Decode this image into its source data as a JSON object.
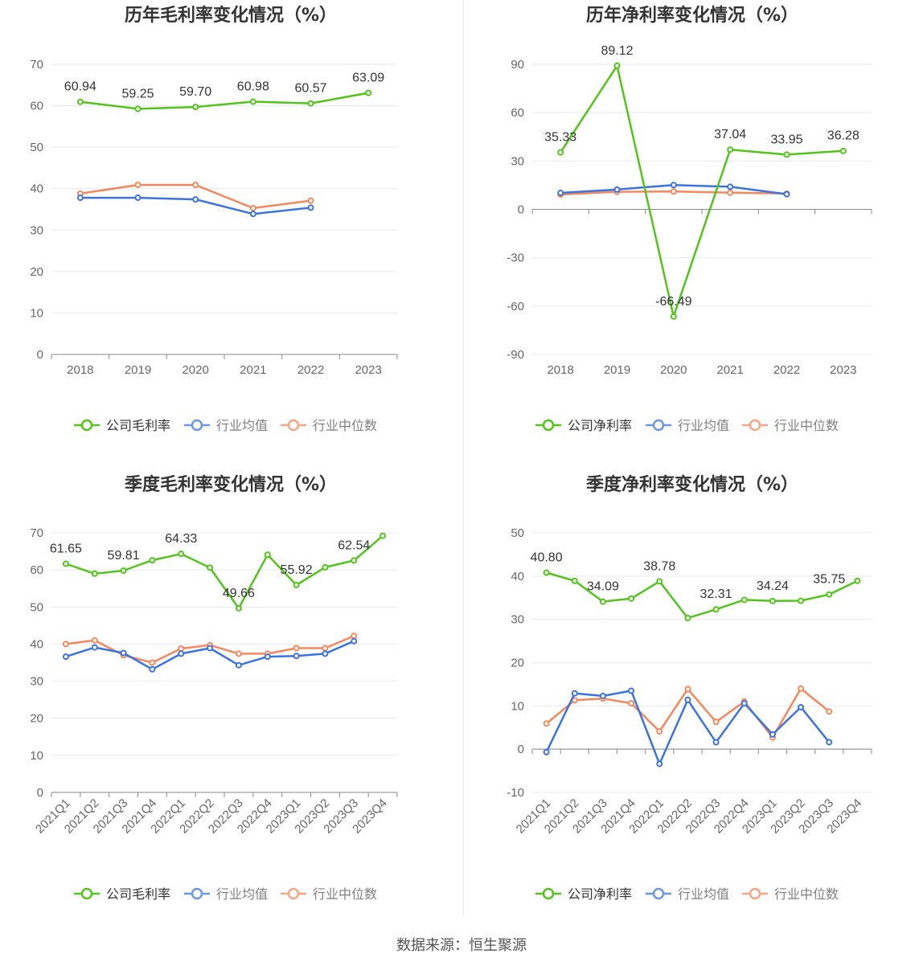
{
  "colors": {
    "company": "#52c41a",
    "avg": "#3b73e0",
    "median": "#f5875c"
  },
  "legend": {
    "avg": "行业均值",
    "median": "行业中位数"
  },
  "source": "数据来源：恒生聚源",
  "chart_data": [
    {
      "type": "line",
      "title": "历年毛利率变化情况（%）",
      "categories": [
        "2018",
        "2019",
        "2020",
        "2021",
        "2022",
        "2023"
      ],
      "ylim": [
        0,
        70
      ],
      "yticks": [
        0,
        10,
        20,
        30,
        40,
        50,
        60,
        70
      ],
      "grid": true,
      "legend_position": "bottom",
      "series": [
        {
          "name": "公司毛利率",
          "key": "company",
          "values": [
            60.94,
            59.25,
            59.7,
            60.98,
            60.57,
            63.09
          ],
          "labels": [
            "60.94",
            "59.25",
            "59.70",
            "60.98",
            "60.57",
            "63.09"
          ]
        },
        {
          "name": "行业均值",
          "key": "avg",
          "values": [
            37.8,
            37.8,
            37.4,
            33.9,
            35.4,
            null
          ]
        },
        {
          "name": "行业中位数",
          "key": "median",
          "values": [
            38.8,
            40.9,
            40.9,
            35.3,
            37.1,
            null
          ]
        }
      ]
    },
    {
      "type": "line",
      "title": "历年净利率变化情况（%）",
      "categories": [
        "2018",
        "2019",
        "2020",
        "2021",
        "2022",
        "2023"
      ],
      "ylim": [
        -90,
        90
      ],
      "yticks": [
        -90,
        -60,
        -30,
        0,
        30,
        60,
        90
      ],
      "grid": true,
      "legend_position": "bottom",
      "series": [
        {
          "name": "公司净利率",
          "key": "company",
          "values": [
            35.33,
            89.12,
            -66.49,
            37.04,
            33.95,
            36.28
          ],
          "labels": [
            "35.33",
            "89.12",
            "-66.49",
            "37.04",
            "33.95",
            "36.28"
          ]
        },
        {
          "name": "行业均值",
          "key": "avg",
          "values": [
            10.2,
            12.3,
            15.1,
            14.0,
            9.4,
            null
          ]
        },
        {
          "name": "行业中位数",
          "key": "median",
          "values": [
            9.2,
            10.9,
            11.1,
            10.3,
            9.8,
            null
          ]
        }
      ]
    },
    {
      "type": "line",
      "title": "季度毛利率变化情况（%）",
      "categories": [
        "2021Q1",
        "2021Q2",
        "2021Q3",
        "2021Q4",
        "2022Q1",
        "2022Q2",
        "2022Q3",
        "2022Q4",
        "2023Q1",
        "2023Q2",
        "2023Q3",
        "2023Q4"
      ],
      "ylim": [
        0,
        70
      ],
      "yticks": [
        0,
        10,
        20,
        30,
        40,
        50,
        60,
        70
      ],
      "grid": true,
      "legend_position": "bottom",
      "series": [
        {
          "name": "公司毛利率",
          "key": "company",
          "values": [
            61.65,
            59.0,
            59.81,
            62.6,
            64.33,
            60.6,
            49.66,
            64.1,
            55.92,
            60.7,
            62.54,
            69.2
          ],
          "labels": [
            "61.65",
            null,
            "59.81",
            null,
            "64.33",
            null,
            "49.66",
            null,
            "55.92",
            null,
            "62.54",
            null
          ]
        },
        {
          "name": "行业均值",
          "key": "avg",
          "values": [
            36.6,
            39.1,
            37.6,
            33.2,
            37.4,
            38.9,
            34.3,
            36.6,
            36.8,
            37.4,
            40.8,
            null
          ]
        },
        {
          "name": "行业中位数",
          "key": "median",
          "values": [
            40.0,
            41.0,
            37.0,
            35.0,
            38.8,
            39.7,
            37.4,
            37.4,
            38.9,
            38.9,
            42.2,
            null
          ]
        }
      ]
    },
    {
      "type": "line",
      "title": "季度净利率变化情况（%）",
      "categories": [
        "2021Q1",
        "2021Q2",
        "2021Q3",
        "2021Q4",
        "2022Q1",
        "2022Q2",
        "2022Q3",
        "2022Q4",
        "2023Q1",
        "2023Q2",
        "2023Q3",
        "2023Q4"
      ],
      "ylim": [
        -10,
        50
      ],
      "yticks": [
        -10,
        0,
        10,
        20,
        30,
        40,
        50
      ],
      "grid": true,
      "legend_position": "bottom",
      "series": [
        {
          "name": "公司净利率",
          "key": "company",
          "values": [
            40.8,
            38.9,
            34.09,
            34.8,
            38.78,
            30.3,
            32.31,
            34.5,
            34.24,
            34.3,
            35.75,
            38.9
          ],
          "labels": [
            "40.80",
            null,
            "34.09",
            null,
            "38.78",
            null,
            "32.31",
            null,
            "34.24",
            null,
            "35.75",
            null
          ]
        },
        {
          "name": "行业均值",
          "key": "avg",
          "values": [
            -0.7,
            12.9,
            12.3,
            13.5,
            -3.4,
            11.4,
            1.6,
            10.6,
            3.4,
            9.7,
            1.6,
            null
          ]
        },
        {
          "name": "行业中位数",
          "key": "median",
          "values": [
            5.9,
            11.3,
            11.7,
            10.6,
            4.1,
            13.9,
            6.3,
            11.0,
            2.7,
            14.0,
            8.7,
            null
          ]
        }
      ]
    }
  ]
}
